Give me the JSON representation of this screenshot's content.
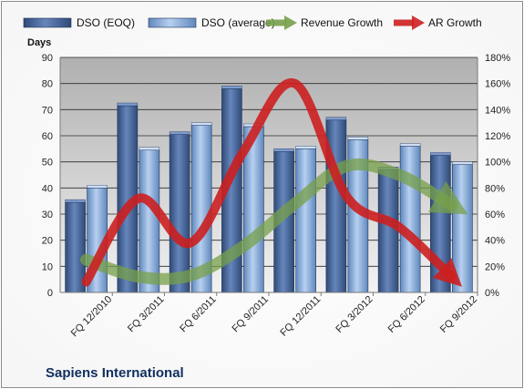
{
  "chart_data": {
    "type": "bar",
    "title": "Sapiens International",
    "ylabel": "Days",
    "ylim": [
      0,
      90
    ],
    "y_ticks": [
      0,
      10,
      20,
      30,
      40,
      50,
      60,
      70,
      80,
      90
    ],
    "y2lim": [
      0,
      180
    ],
    "y2_ticks": [
      "0%",
      "20%",
      "40%",
      "60%",
      "80%",
      "100%",
      "120%",
      "140%",
      "160%",
      "180%"
    ],
    "categories": [
      "FQ 12/2010",
      "FQ 3/2011",
      "FQ 6/2011",
      "FQ 9/2011",
      "FQ 12/2011",
      "FQ 3/2012",
      "FQ 6/2012",
      "FQ 9/2012"
    ],
    "series": [
      {
        "name": "DSO (EOQ)",
        "type": "bar",
        "axis": "left",
        "color": "#4a6a9c",
        "values": [
          34.5,
          71.5,
          60.5,
          78.0,
          54.0,
          66.0,
          47.0,
          52.5
        ]
      },
      {
        "name": "DSO (average)",
        "type": "bar",
        "axis": "left",
        "color": "#8fb3e0",
        "values": [
          40.0,
          54.5,
          64.0,
          63.5,
          55.0,
          58.5,
          56.0,
          49.0
        ]
      },
      {
        "name": "Revenue Growth",
        "type": "line",
        "axis": "right",
        "color": "#77a04a",
        "values": [
          25,
          12,
          13,
          35,
          68,
          97,
          90,
          67
        ]
      },
      {
        "name": "AR Growth",
        "type": "line",
        "axis": "right",
        "color": "#cc1f1f",
        "values": [
          8,
          72,
          38,
          107,
          160,
          73,
          50,
          12
        ]
      }
    ],
    "grid": true,
    "legend_position": "top"
  }
}
